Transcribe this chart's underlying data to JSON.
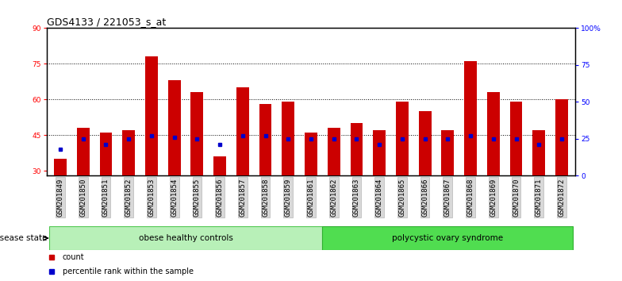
{
  "title": "GDS4133 / 221053_s_at",
  "samples": [
    "GSM201849",
    "GSM201850",
    "GSM201851",
    "GSM201852",
    "GSM201853",
    "GSM201854",
    "GSM201855",
    "GSM201856",
    "GSM201857",
    "GSM201858",
    "GSM201859",
    "GSM201861",
    "GSM201862",
    "GSM201863",
    "GSM201864",
    "GSM201865",
    "GSM201866",
    "GSM201867",
    "GSM201868",
    "GSM201869",
    "GSM201870",
    "GSM201871",
    "GSM201872"
  ],
  "counts": [
    35,
    48,
    46,
    47,
    78,
    68,
    63,
    36,
    65,
    58,
    59,
    46,
    48,
    50,
    47,
    59,
    55,
    47,
    76,
    63,
    59,
    47,
    60
  ],
  "percentiles_right": [
    18,
    25,
    21,
    25,
    27,
    26,
    25,
    21,
    27,
    27,
    25,
    25,
    25,
    25,
    21,
    25,
    25,
    25,
    27,
    25,
    25,
    21,
    25
  ],
  "groups": [
    {
      "label": "obese healthy controls",
      "start": 0,
      "end": 12,
      "color": "#b8f0b8",
      "edge": "#50c850"
    },
    {
      "label": "polycystic ovary syndrome",
      "start": 12,
      "end": 23,
      "color": "#50dd50",
      "edge": "#30b030"
    }
  ],
  "ylim_left": [
    28,
    90
  ],
  "ylim_right": [
    0,
    100
  ],
  "yticks_left": [
    30,
    45,
    60,
    75,
    90
  ],
  "yticks_right": [
    0,
    25,
    50,
    75,
    100
  ],
  "ytick_labels_right": [
    "0",
    "25",
    "50",
    "75",
    "100%"
  ],
  "grid_values": [
    45,
    60,
    75
  ],
  "bar_color": "#CC0000",
  "marker_color": "#0000CC",
  "bar_width": 0.55,
  "title_fontsize": 9,
  "tick_fontsize": 6.5,
  "label_fontsize": 7.5,
  "legend_fontsize": 7,
  "disease_state_label": "disease state",
  "count_label": "count",
  "percentile_label": "percentile rank within the sample",
  "bg_color": "#ffffff"
}
